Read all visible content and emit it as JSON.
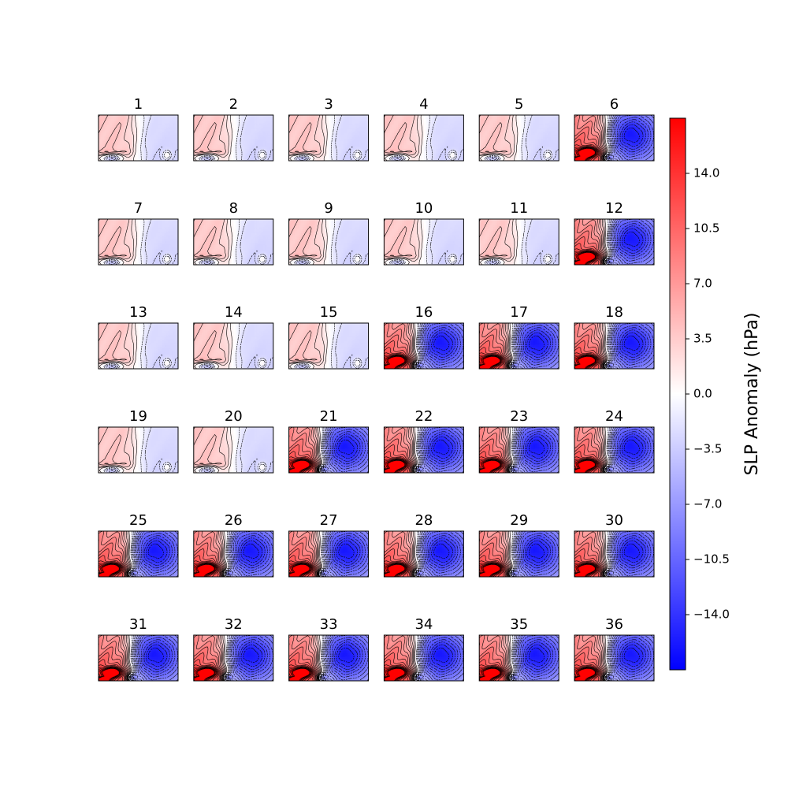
{
  "chart_data": {
    "type": "heatmap",
    "grid": {
      "rows": 6,
      "cols": 6
    },
    "panel_titles": [
      "1",
      "2",
      "3",
      "4",
      "5",
      "6",
      "7",
      "8",
      "9",
      "10",
      "11",
      "12",
      "13",
      "14",
      "15",
      "16",
      "17",
      "18",
      "19",
      "20",
      "21",
      "22",
      "23",
      "24",
      "25",
      "26",
      "27",
      "28",
      "29",
      "30",
      "31",
      "32",
      "33",
      "34",
      "35",
      "36"
    ],
    "panel_pattern": [
      "A",
      "A",
      "A",
      "A",
      "A",
      "B",
      "A",
      "A",
      "A",
      "A",
      "A",
      "B",
      "A",
      "A",
      "A",
      "B",
      "B",
      "B",
      "A",
      "A",
      "B",
      "B",
      "B",
      "B",
      "B",
      "B",
      "B",
      "B",
      "B",
      "B",
      "B",
      "B",
      "B",
      "B",
      "B",
      "B"
    ],
    "pattern_description_values": {
      "A": {
        "west_max": 3.5,
        "east_min": -3.5,
        "southwest_min": -7.0
      },
      "B": {
        "west_max": 14.0,
        "east_min": -10.5,
        "southwest_max": 17.5
      }
    },
    "colorbar": {
      "label": "SLP Anomaly (hPa)",
      "cmap": "bwr",
      "vmin": -17.5,
      "vmax": 17.5,
      "ticks": [
        14.0,
        10.5,
        7.0,
        3.5,
        0.0,
        -3.5,
        -7.0,
        -10.5,
        -14.0
      ],
      "tick_labels": [
        "14.0",
        "10.5",
        "7.0",
        "3.5",
        "0.0",
        "−3.5",
        "−7.0",
        "−10.5",
        "−14.0"
      ]
    },
    "contours": {
      "positive_style": "solid",
      "negative_style": "dashed",
      "color": "#000000"
    }
  }
}
